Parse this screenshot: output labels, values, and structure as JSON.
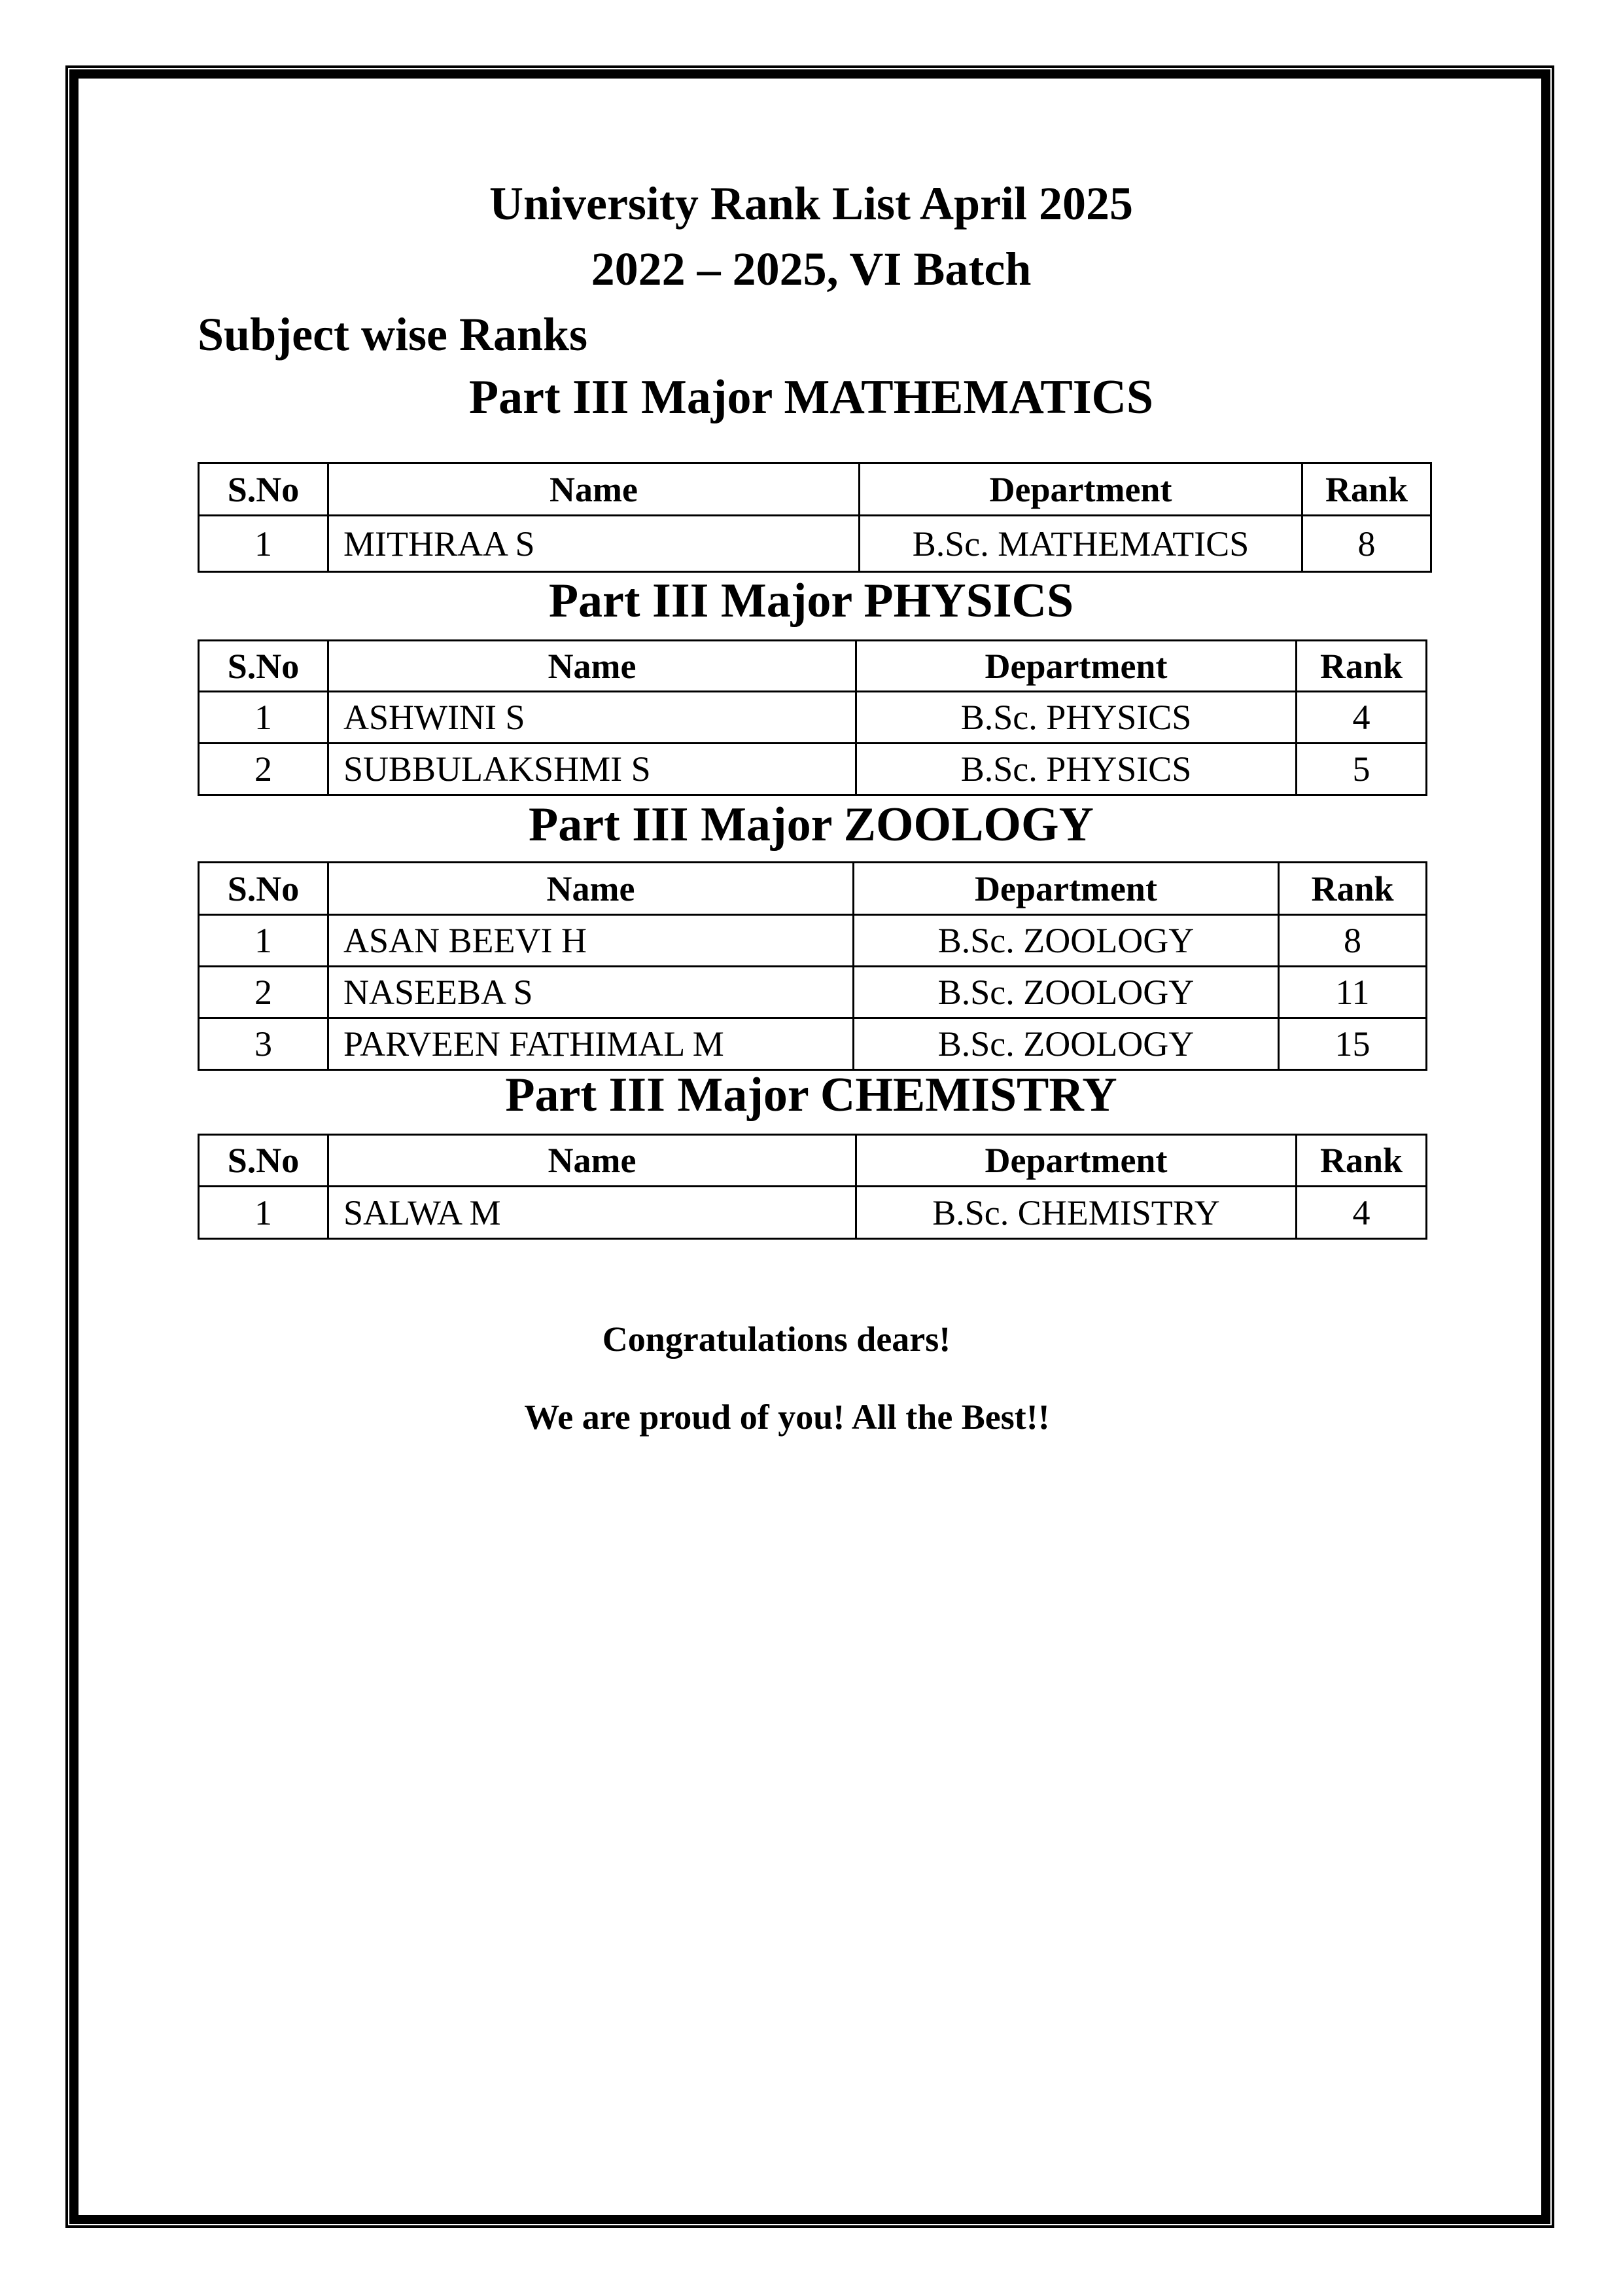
{
  "header": {
    "title": "University Rank List April 2025",
    "batch": "2022 – 2025, VI Batch",
    "subtitle": "Subject wise Ranks"
  },
  "columns": [
    "S.No",
    "Name",
    "Department",
    "Rank"
  ],
  "sections": [
    {
      "heading": "Part III Major MATHEMATICS",
      "rows": [
        {
          "sno": "1",
          "name": "MITHRAA S",
          "dept": "B.Sc. MATHEMATICS",
          "rank": "8"
        }
      ]
    },
    {
      "heading": "Part III Major PHYSICS",
      "rows": [
        {
          "sno": "1",
          "name": "ASHWINI S",
          "dept": "B.Sc. PHYSICS",
          "rank": "4"
        },
        {
          "sno": "2",
          "name": "SUBBULAKSHMI S",
          "dept": "B.Sc. PHYSICS",
          "rank": "5"
        }
      ]
    },
    {
      "heading": "Part III Major ZOOLOGY",
      "rows": [
        {
          "sno": "1",
          "name": "ASAN BEEVI H",
          "dept": "B.Sc. ZOOLOGY",
          "rank": "8"
        },
        {
          "sno": "2",
          "name": "NASEEBA S",
          "dept": "B.Sc. ZOOLOGY",
          "rank": "11"
        },
        {
          "sno": "3",
          "name": "PARVEEN FATHIMAL M",
          "dept": "B.Sc. ZOOLOGY",
          "rank": "15"
        }
      ]
    },
    {
      "heading": "Part III Major CHEMISTRY",
      "rows": [
        {
          "sno": "1",
          "name": "SALWA M",
          "dept": "B.Sc. CHEMISTRY",
          "rank": "4"
        }
      ]
    }
  ],
  "footer": {
    "line1": "Congratulations dears!",
    "line2": "We are proud of you! All the Best!!"
  }
}
